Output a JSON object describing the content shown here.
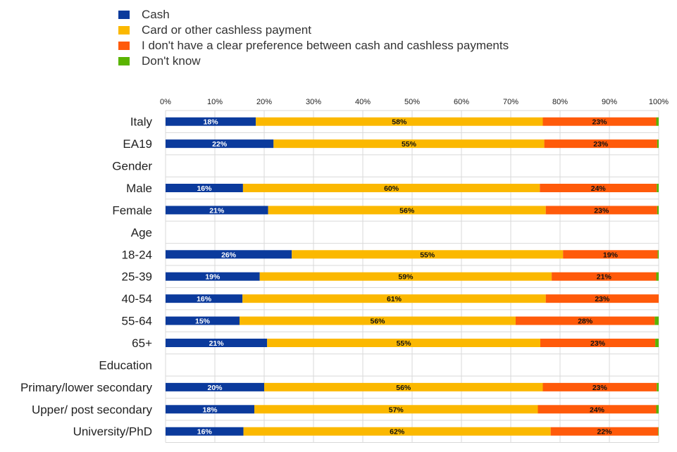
{
  "chart_data": {
    "type": "bar",
    "orientation": "horizontal",
    "stacked": true,
    "xlim": [
      0,
      100
    ],
    "x_ticks": [
      "0%",
      "10%",
      "20%",
      "30%",
      "40%",
      "50%",
      "60%",
      "70%",
      "80%",
      "90%",
      "100%"
    ],
    "grid": true,
    "legend_position": "top-left",
    "categories": [
      "Italy",
      "EA19",
      "Gender",
      "Male",
      "Female",
      "Age",
      "18-24",
      "25-39",
      "40-54",
      "55-64",
      "65+",
      "Education",
      "Primary/lower secondary",
      "Upper/ post secondary",
      "University/PhD"
    ],
    "series": [
      {
        "name": "Cash",
        "color": "#0b3a9c",
        "values": [
          18.3,
          21.9,
          null,
          15.7,
          20.8,
          null,
          25.6,
          19.1,
          15.6,
          15.0,
          20.6,
          null,
          20.0,
          18.0,
          15.8
        ],
        "labels": [
          "18%",
          "22%",
          "",
          "16%",
          "21%",
          "",
          "26%",
          "19%",
          "16%",
          "15%",
          "21%",
          "",
          "20%",
          "18%",
          "16%"
        ]
      },
      {
        "name": "Card or other cashless payment",
        "color": "#fbb800",
        "values": [
          58.2,
          54.9,
          null,
          60.2,
          56.3,
          null,
          55.0,
          59.2,
          61.5,
          56.0,
          55.4,
          null,
          56.5,
          57.5,
          62.3
        ],
        "labels": [
          "58%",
          "55%",
          "",
          "60%",
          "56%",
          "",
          "55%",
          "59%",
          "61%",
          "56%",
          "55%",
          "",
          "56%",
          "57%",
          "62%"
        ]
      },
      {
        "name": "I don't have a clear preference between cash and cashless payments",
        "color": "#ff5a0a",
        "values": [
          23.0,
          22.9,
          null,
          23.7,
          22.6,
          null,
          19.2,
          21.2,
          22.9,
          28.2,
          23.3,
          null,
          23.1,
          24.0,
          21.8
        ],
        "labels": [
          "23%",
          "23%",
          "",
          "24%",
          "23%",
          "",
          "19%",
          "21%",
          "23%",
          "28%",
          "23%",
          "",
          "23%",
          "24%",
          "22%"
        ]
      },
      {
        "name": "Don't know",
        "color": "#5ab400",
        "values": [
          0.5,
          0.3,
          null,
          0.4,
          0.3,
          null,
          0.2,
          0.5,
          0.0,
          0.8,
          0.7,
          null,
          0.4,
          0.5,
          0.1
        ],
        "labels": [
          "",
          "",
          "",
          "",
          "",
          "",
          "",
          "",
          "",
          "",
          "",
          "",
          "",
          "",
          ""
        ]
      }
    ]
  }
}
